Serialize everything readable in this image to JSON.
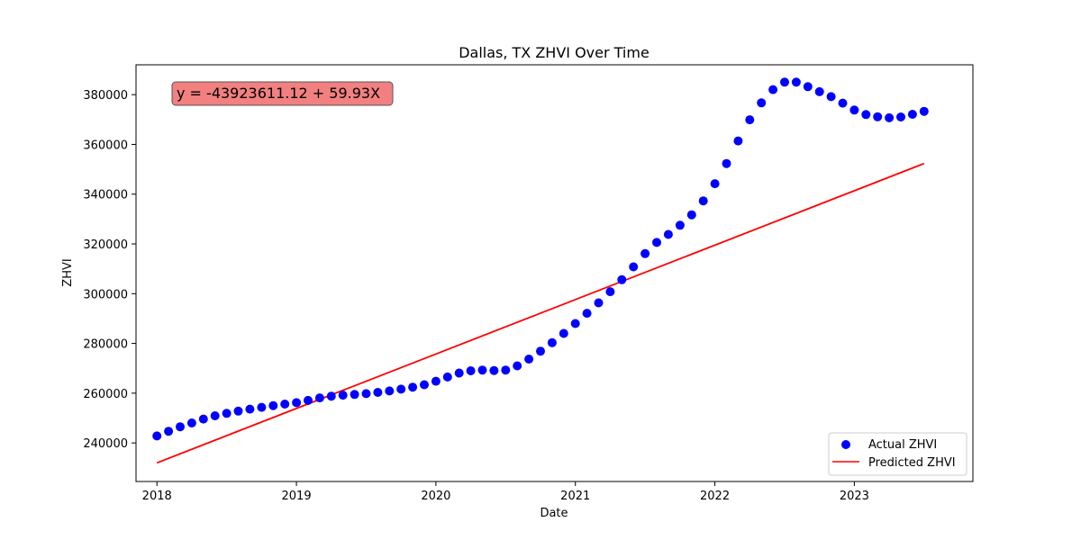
{
  "chart_data": {
    "type": "scatter",
    "title": "Dallas, TX ZHVI Over Time",
    "xlabel": "Date",
    "ylabel": "ZHVI",
    "xlim": [
      2017.85,
      2023.85
    ],
    "ylim": [
      224500,
      392000
    ],
    "x_ticks": [
      2018,
      2019,
      2020,
      2021,
      2022,
      2023
    ],
    "y_ticks": [
      240000,
      260000,
      280000,
      300000,
      320000,
      340000,
      360000,
      380000
    ],
    "annotation": "y = -43923611.12 + 59.93X",
    "legend": {
      "position": "bottom-right",
      "entries": [
        "Actual ZHVI",
        "Predicted ZHVI"
      ]
    },
    "colors": {
      "actual": "#0000ff",
      "predicted": "#ff0000",
      "annotation_box": "#f28080"
    },
    "series": [
      {
        "name": "Actual ZHVI",
        "kind": "scatter",
        "x": [
          "2018-01",
          "2018-02",
          "2018-03",
          "2018-04",
          "2018-05",
          "2018-06",
          "2018-07",
          "2018-08",
          "2018-09",
          "2018-10",
          "2018-11",
          "2018-12",
          "2019-01",
          "2019-02",
          "2019-03",
          "2019-04",
          "2019-05",
          "2019-06",
          "2019-07",
          "2019-08",
          "2019-09",
          "2019-10",
          "2019-11",
          "2019-12",
          "2020-01",
          "2020-02",
          "2020-03",
          "2020-04",
          "2020-05",
          "2020-06",
          "2020-07",
          "2020-08",
          "2020-09",
          "2020-10",
          "2020-11",
          "2020-12",
          "2021-01",
          "2021-02",
          "2021-03",
          "2021-04",
          "2021-05",
          "2021-06",
          "2021-07",
          "2021-08",
          "2021-09",
          "2021-10",
          "2021-11",
          "2021-12",
          "2022-01",
          "2022-02",
          "2022-03",
          "2022-04",
          "2022-05",
          "2022-06",
          "2022-07",
          "2022-08",
          "2022-09",
          "2022-10",
          "2022-11",
          "2022-12",
          "2023-01",
          "2023-02",
          "2023-03",
          "2023-04",
          "2023-05",
          "2023-06",
          "2023-07"
        ],
        "y": [
          242800,
          244700,
          246500,
          248000,
          249600,
          250900,
          251900,
          252800,
          253600,
          254300,
          255000,
          255600,
          256200,
          257100,
          258100,
          258800,
          259200,
          259500,
          259800,
          260300,
          260900,
          261600,
          262400,
          263400,
          264800,
          266500,
          268100,
          269000,
          269300,
          269100,
          269300,
          271000,
          273700,
          276900,
          280300,
          284000,
          288000,
          292100,
          296300,
          300800,
          305600,
          310800,
          316100,
          320600,
          323800,
          327500,
          331700,
          337300,
          344200,
          352300,
          361400,
          369900,
          376700,
          382000,
          385000,
          385000,
          383200,
          381200,
          379200,
          376600,
          373800,
          372000,
          371100,
          370700,
          371000,
          372100,
          373300
        ]
      },
      {
        "name": "Predicted ZHVI",
        "kind": "line",
        "x": [
          "2018-01",
          "2023-07"
        ],
        "y": [
          232000,
          352300
        ]
      }
    ]
  }
}
